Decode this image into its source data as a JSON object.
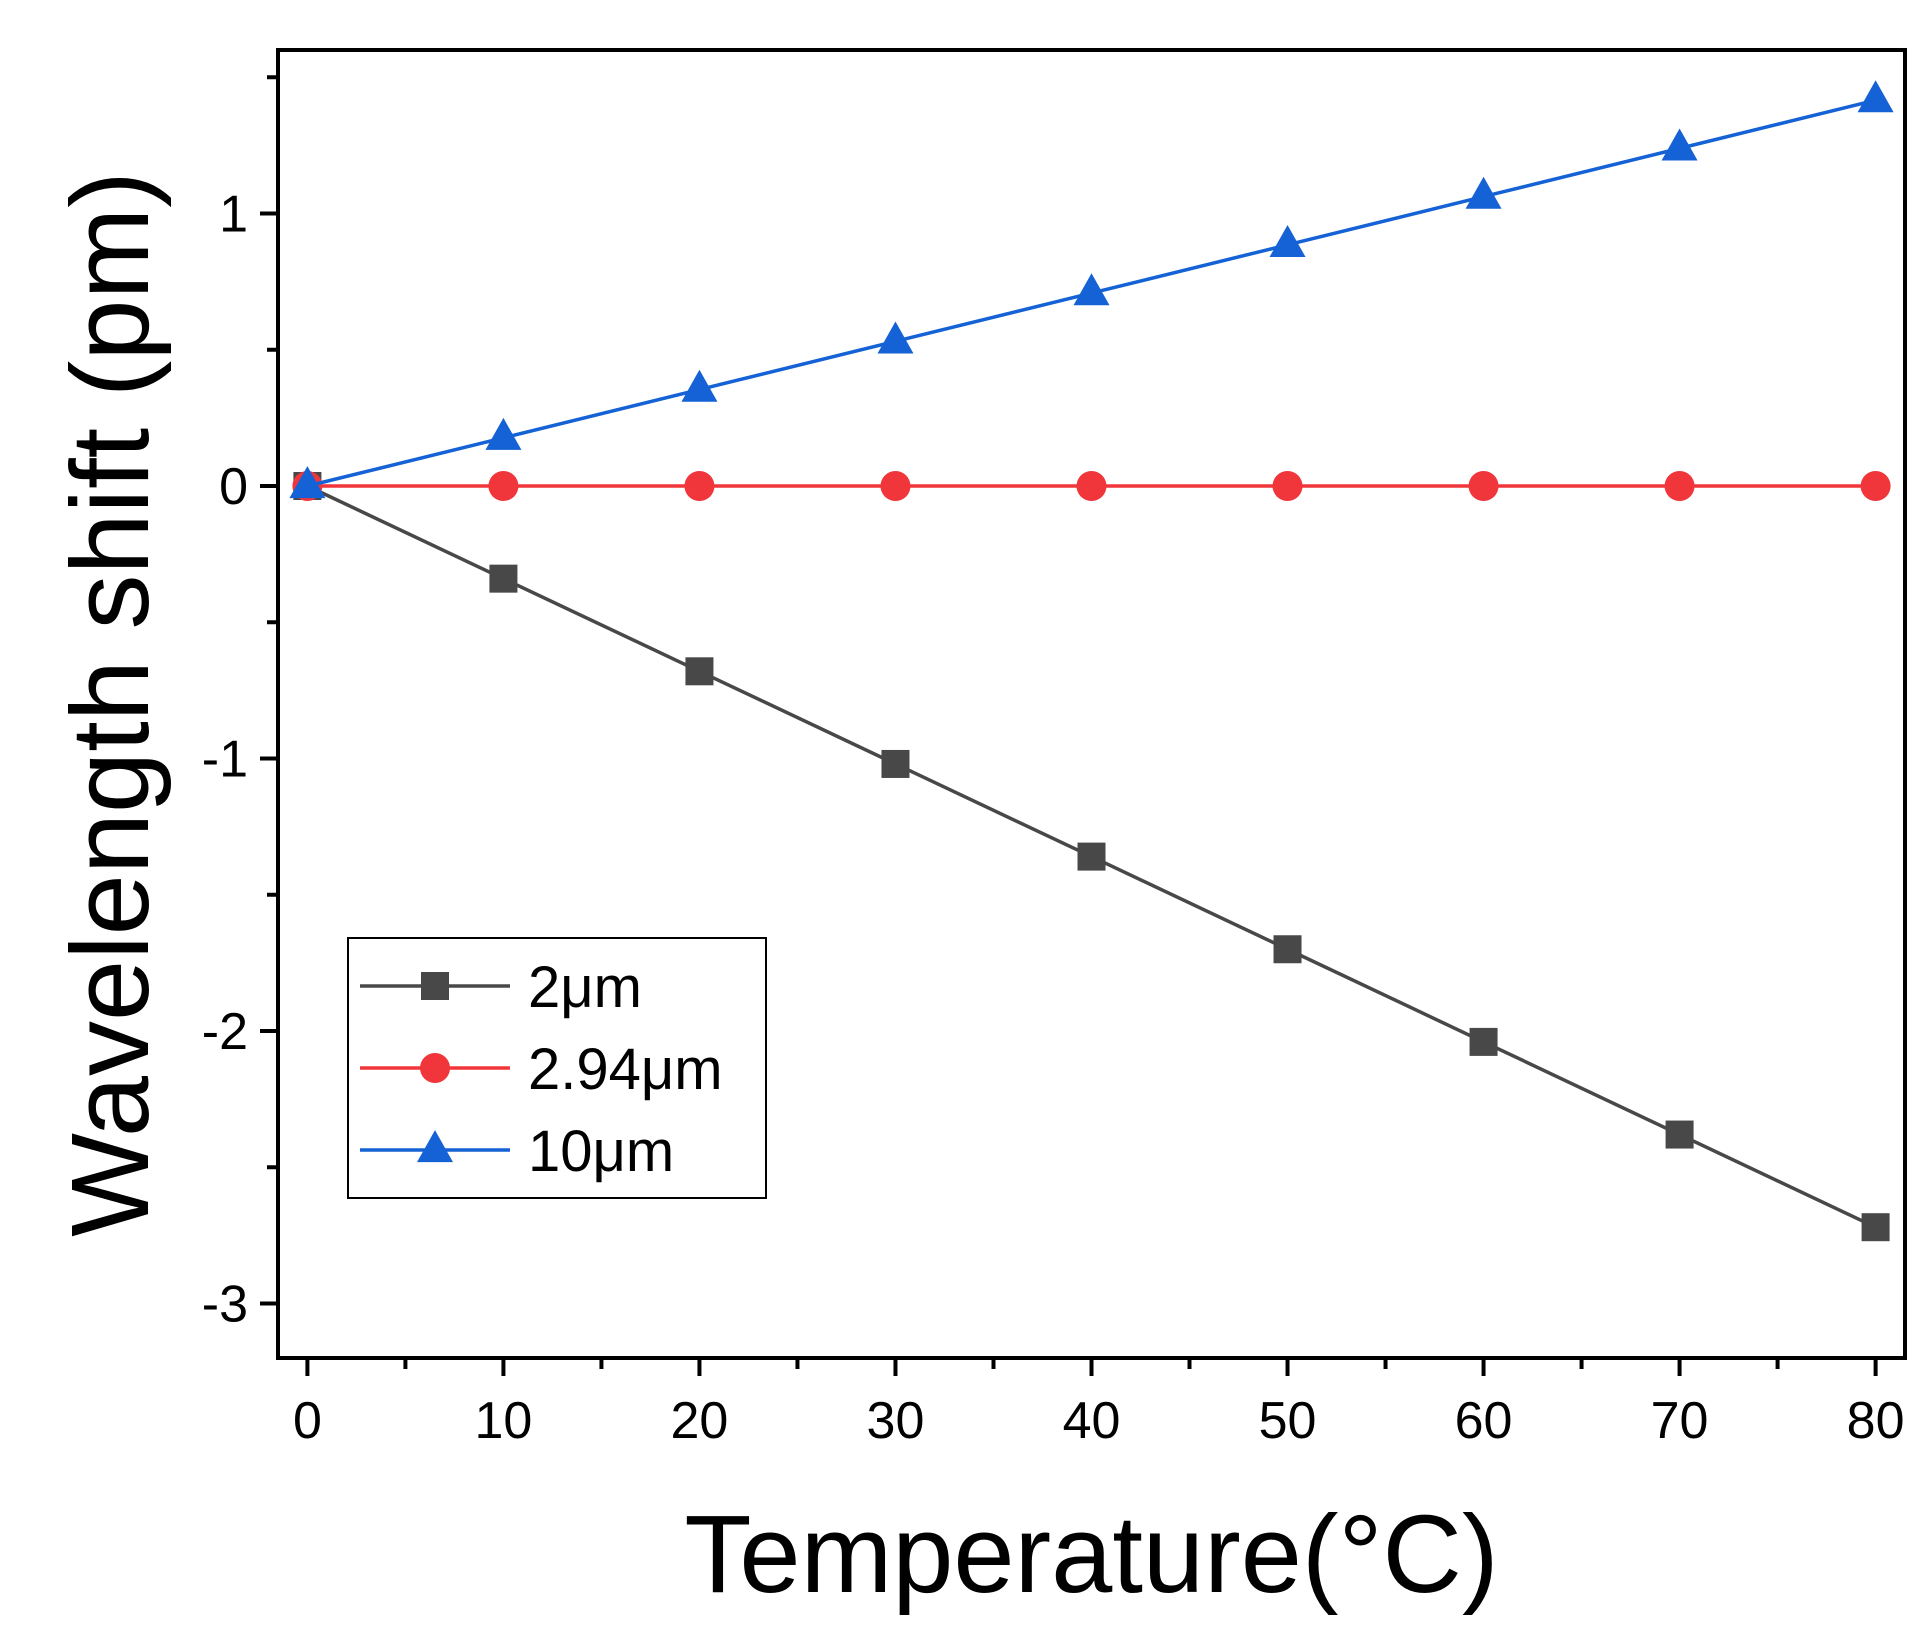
{
  "chart_data": {
    "type": "line",
    "title": "",
    "xlabel": "Temperature(°C)",
    "ylabel": "Wavelength shift (pm)",
    "xlim": [
      -1.5,
      81.5
    ],
    "ylim": [
      -3.2,
      1.6
    ],
    "x": [
      0,
      10,
      20,
      30,
      40,
      50,
      60,
      70,
      80
    ],
    "x_ticks": [
      0,
      10,
      20,
      30,
      40,
      50,
      60,
      70,
      80
    ],
    "x_tick_labels": [
      "0",
      "10",
      "20",
      "30",
      "40",
      "50",
      "60",
      "70",
      "80"
    ],
    "y_ticks": [
      -3,
      -2,
      -1,
      0,
      1
    ],
    "y_tick_labels": [
      "-3",
      "-2",
      "-1",
      "0",
      "1"
    ],
    "grid": false,
    "legend_position": "bottom-left",
    "series": [
      {
        "name": "2μm",
        "color": "#484848",
        "marker": "square",
        "values": [
          0,
          -0.34,
          -0.68,
          -1.02,
          -1.36,
          -1.7,
          -2.04,
          -2.38,
          -2.72
        ]
      },
      {
        "name": "2.94μm",
        "color": "#f0363b",
        "marker": "circle",
        "values": [
          0,
          0,
          0,
          0,
          0,
          0,
          0,
          0,
          0
        ]
      },
      {
        "name": "10μm",
        "color": "#1462d6",
        "marker": "triangle",
        "values": [
          0,
          0.177,
          0.354,
          0.531,
          0.708,
          0.885,
          1.062,
          1.239,
          1.416
        ]
      }
    ]
  }
}
